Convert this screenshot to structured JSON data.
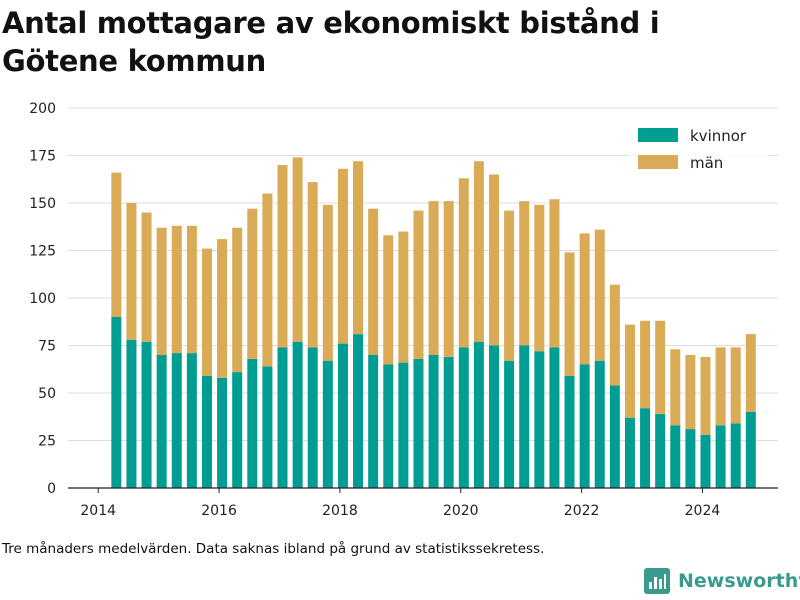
{
  "title": "Antal mottagare av ekonomiskt bistånd i Götene kommun",
  "caption": "Tre månaders medelvärden. Data saknas ibland på grund av statistikssekretess.",
  "brand": {
    "name": "Newsworthy",
    "icon": "newsworthy-logo-icon",
    "color": "#3a9a8c"
  },
  "chart_data": {
    "type": "bar",
    "stacked": true,
    "x_axis": {
      "ticks": [
        2014,
        2016,
        2018,
        2020,
        2022,
        2024
      ],
      "range": [
        2013.5,
        2025.25
      ]
    },
    "y_axis": {
      "ticks": [
        0,
        25,
        50,
        75,
        100,
        125,
        150,
        175,
        200
      ],
      "range": [
        0,
        200
      ]
    },
    "grid": "horizontal",
    "legend_position": "top-right",
    "x": [
      2014.3,
      2014.55,
      2014.8,
      2015.05,
      2015.3,
      2015.55,
      2015.8,
      2016.05,
      2016.3,
      2016.55,
      2016.8,
      2017.05,
      2017.3,
      2017.55,
      2017.8,
      2018.05,
      2018.3,
      2018.55,
      2018.8,
      2019.05,
      2019.3,
      2019.55,
      2019.8,
      2020.05,
      2020.3,
      2020.55,
      2020.8,
      2021.05,
      2021.3,
      2021.55,
      2021.8,
      2022.05,
      2022.3,
      2022.55,
      2022.8,
      2023.05,
      2023.3,
      2023.55,
      2023.8,
      2024.05,
      2024.3,
      2024.55,
      2024.8
    ],
    "series": [
      {
        "name": "kvinnor",
        "color": "#009e92",
        "values": [
          90,
          78,
          77,
          70,
          71,
          71,
          59,
          58,
          61,
          68,
          64,
          74,
          77,
          74,
          67,
          76,
          81,
          70,
          65,
          66,
          68,
          70,
          69,
          74,
          77,
          75,
          67,
          75,
          72,
          74,
          59,
          65,
          67,
          54,
          37,
          42,
          39,
          33,
          31,
          28,
          33,
          34,
          40
        ]
      },
      {
        "name": "män",
        "color": "#d9ab57",
        "values": [
          76,
          72,
          68,
          67,
          67,
          67,
          67,
          73,
          76,
          79,
          91,
          96,
          97,
          87,
          82,
          92,
          91,
          77,
          68,
          69,
          78,
          81,
          82,
          89,
          95,
          90,
          79,
          76,
          77,
          78,
          65,
          69,
          69,
          53,
          49,
          46,
          49,
          40,
          39,
          41,
          41,
          40,
          41
        ]
      }
    ]
  }
}
